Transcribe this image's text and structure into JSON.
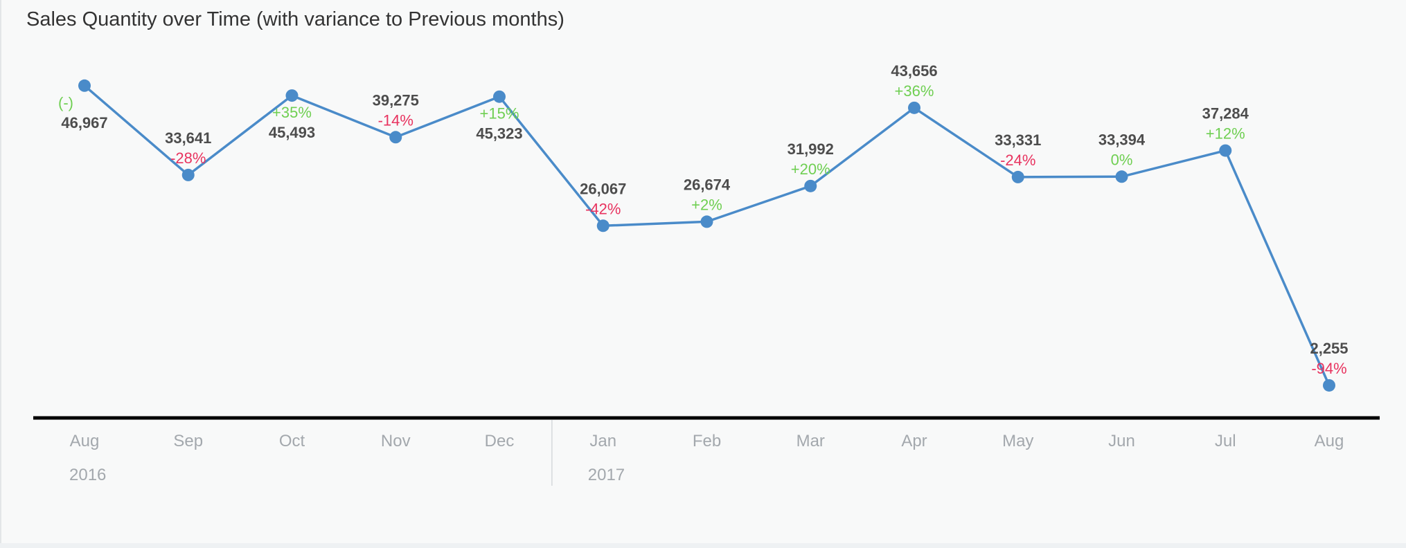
{
  "title": "Sales Quantity over Time (with variance to Previous months)",
  "colors": {
    "line": "#4a8bc9",
    "positive": "#6fcf52",
    "negative": "#e8335f",
    "neutral": "#6fcf52",
    "axis": "#000000",
    "value_label": "#4d4d4d",
    "tick_label": "#a3a8ad"
  },
  "chart_data": {
    "type": "line",
    "title": "Sales Quantity over Time (with variance to Previous months)",
    "xlabel": "",
    "ylabel": "",
    "grid": false,
    "legend": "none",
    "ylim": [
      0,
      47000
    ],
    "categories": [
      "Aug",
      "Sep",
      "Oct",
      "Nov",
      "Dec",
      "Jan",
      "Feb",
      "Mar",
      "Apr",
      "May",
      "Jun",
      "Jul",
      "Aug"
    ],
    "year_groups": [
      {
        "year": "2016",
        "start_index": 0
      },
      {
        "year": "2017",
        "start_index": 5
      }
    ],
    "series": [
      {
        "values": [
          46967,
          33641,
          45493,
          39275,
          45323,
          26067,
          26674,
          31992,
          43656,
          33331,
          33394,
          37284,
          2255
        ],
        "value_labels": [
          "46,967",
          "33,641",
          "45,493",
          "39,275",
          "45,323",
          "26,067",
          "26,674",
          "31,992",
          "43,656",
          "33,331",
          "33,394",
          "37,284",
          "2,255"
        ],
        "variance_labels": [
          "(-)",
          "-28%",
          "+35%",
          "-14%",
          "+15%",
          "-42%",
          "+2%",
          "+20%",
          "+36%",
          "-24%",
          "0%",
          "+12%",
          "-94%"
        ]
      }
    ]
  }
}
